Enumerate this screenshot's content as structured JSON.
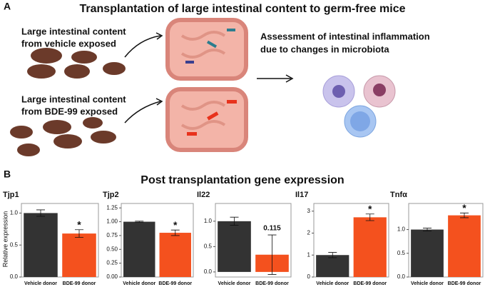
{
  "panel_a": {
    "label": "A",
    "title": "Transplantation of large intestinal content to germ-free mice",
    "vehicle_text": [
      "Large intestinal content",
      "from vehicle exposed"
    ],
    "bde_text": [
      "Large intestinal content",
      "from BDE-99 exposed"
    ],
    "assessment_text": [
      "Assessment of intestinal inflammation",
      "due to changes in microbiota"
    ]
  },
  "panel_b": {
    "label": "B",
    "title": "Post transplantation gene expression",
    "ylabel": "Relative expression"
  },
  "chart_data": [
    {
      "type": "bar",
      "title": "Tjp1",
      "categories": [
        "Vehicle donor",
        "BDE-99 donor"
      ],
      "values": [
        1.0,
        0.68
      ],
      "errors": [
        0.05,
        0.06
      ],
      "colors": [
        "#333333",
        "#f4511e"
      ],
      "annotation": "*",
      "ylim": [
        0,
        1.15
      ],
      "yticks": [
        {
          "value": 0,
          "label": "0.0"
        },
        {
          "value": 0.5,
          "label": "0.5"
        },
        {
          "value": 1,
          "label": "1.0"
        }
      ]
    },
    {
      "type": "bar",
      "title": "Tjp2",
      "categories": [
        "Vehicle donor",
        "BDE-99 donor"
      ],
      "values": [
        1.0,
        0.8
      ],
      "errors": [
        0.01,
        0.05
      ],
      "colors": [
        "#333333",
        "#f4511e"
      ],
      "annotation": "*",
      "ylim": [
        0,
        1.33
      ],
      "yticks": [
        {
          "value": 0,
          "label": "0.00"
        },
        {
          "value": 0.25,
          "label": "0.25"
        },
        {
          "value": 0.5,
          "label": "0.50"
        },
        {
          "value": 0.75,
          "label": "0.75"
        },
        {
          "value": 1,
          "label": "1.00"
        },
        {
          "value": 1.25,
          "label": "1.25"
        }
      ]
    },
    {
      "type": "bar",
      "title": "Il22",
      "categories": [
        "Vehicle donor",
        "BDE-99 donor"
      ],
      "values": [
        1.0,
        0.34
      ],
      "errors": [
        0.08,
        0.39
      ],
      "colors": [
        "#333333",
        "#f4511e"
      ],
      "annotation": "0.115",
      "ylim": [
        -0.1,
        1.35
      ],
      "yticks": [
        {
          "value": 0,
          "label": "0.0"
        },
        {
          "value": 0.5,
          "label": "0.5"
        },
        {
          "value": 1,
          "label": "1.0"
        }
      ]
    },
    {
      "type": "bar",
      "title": "Il17",
      "categories": [
        "Vehicle donor",
        "BDE-99 donor"
      ],
      "values": [
        1.0,
        2.72
      ],
      "errors": [
        0.12,
        0.15
      ],
      "colors": [
        "#333333",
        "#f4511e"
      ],
      "annotation": "*",
      "ylim": [
        0,
        3.35
      ],
      "yticks": [
        0,
        1,
        2,
        3
      ]
    },
    {
      "type": "bar",
      "title": "Tnfα",
      "categories": [
        "Vehicle donor",
        "BDE-99 donor"
      ],
      "values": [
        1.0,
        1.3
      ],
      "errors": [
        0.03,
        0.05
      ],
      "colors": [
        "#333333",
        "#f4511e"
      ],
      "annotation": "*",
      "ylim": [
        0,
        1.55
      ],
      "yticks": [
        {
          "value": 0,
          "label": "0.0"
        },
        {
          "value": 0.5,
          "label": "0.5"
        },
        {
          "value": 1,
          "label": "1.0"
        }
      ]
    }
  ]
}
